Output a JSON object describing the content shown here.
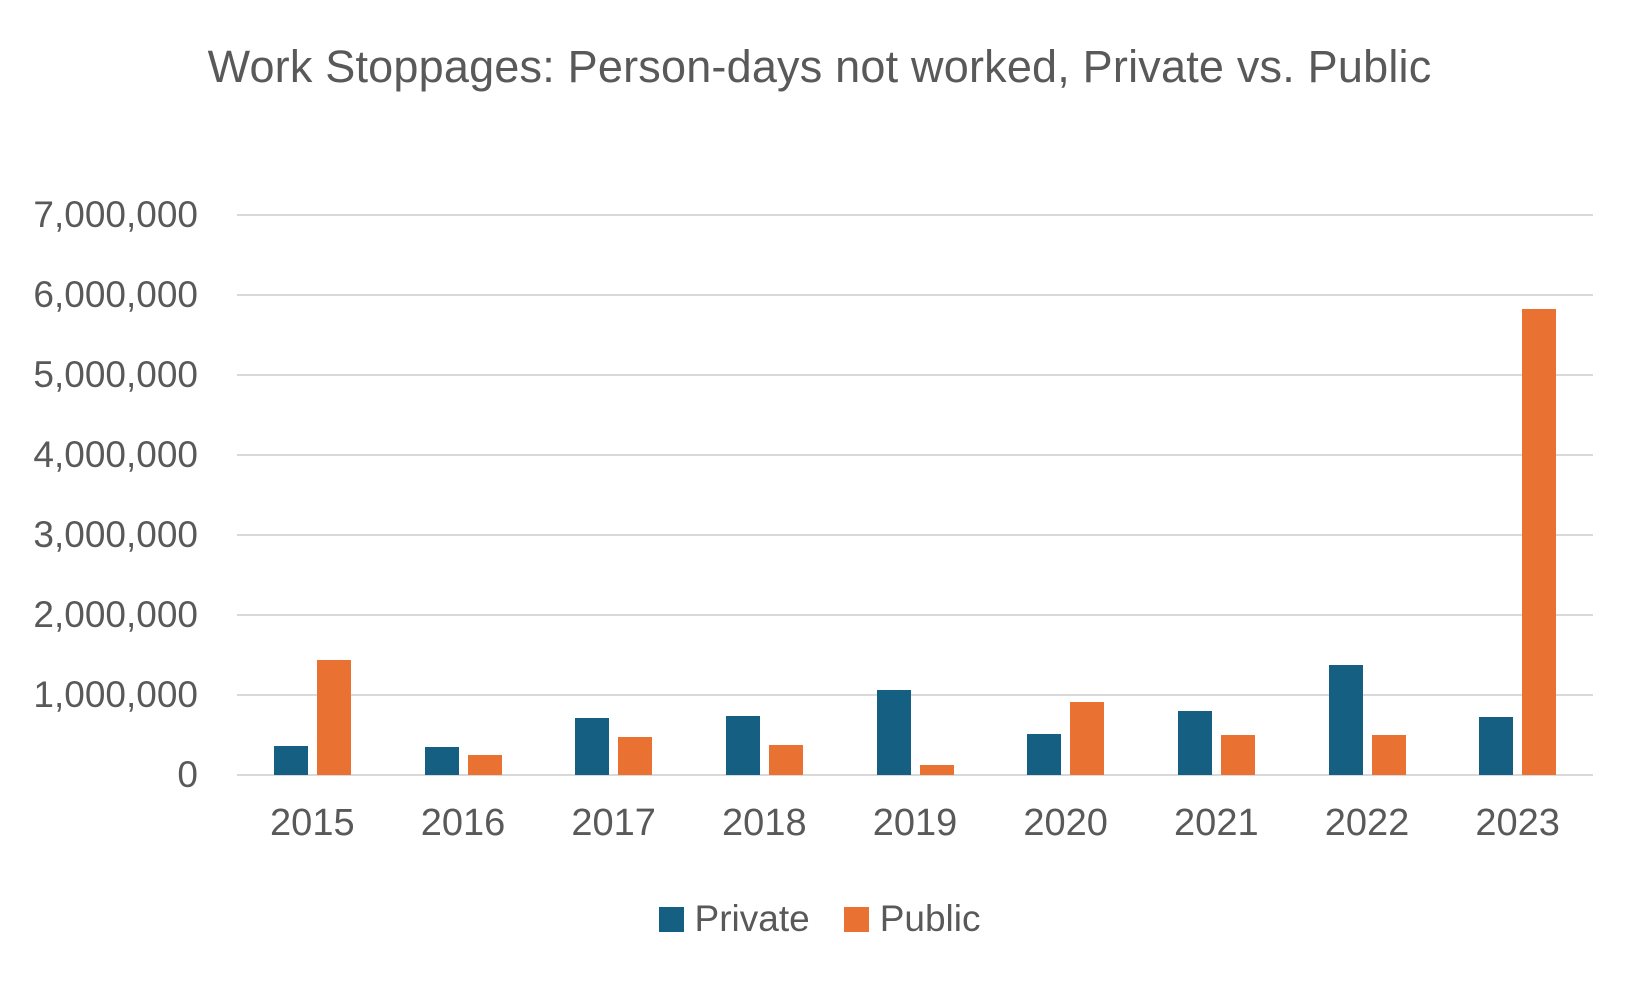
{
  "chart_data": {
    "type": "bar",
    "title": "Work Stoppages: Person-days not worked, Private vs. Public",
    "categories": [
      "2015",
      "2016",
      "2017",
      "2018",
      "2019",
      "2020",
      "2021",
      "2022",
      "2023"
    ],
    "series": [
      {
        "name": "Private",
        "color": "#156082",
        "values": [
          360000,
          350000,
          710000,
          740000,
          1060000,
          510000,
          800000,
          1370000,
          730000
        ]
      },
      {
        "name": "Public",
        "color": "#E97132",
        "values": [
          1440000,
          250000,
          470000,
          380000,
          130000,
          910000,
          500000,
          500000,
          5830000
        ]
      }
    ],
    "xlabel": "",
    "ylabel": "",
    "ylim": [
      0,
      7000000
    ],
    "ytick_step": 1000000,
    "ytick_labels": [
      "0",
      "1,000,000",
      "2,000,000",
      "3,000,000",
      "4,000,000",
      "5,000,000",
      "6,000,000",
      "7,000,000"
    ],
    "grid": true,
    "legend_position": "bottom"
  },
  "colors": {
    "background": "#FFFFFF",
    "text": "#595959",
    "gridline": "#D9D9D9"
  }
}
